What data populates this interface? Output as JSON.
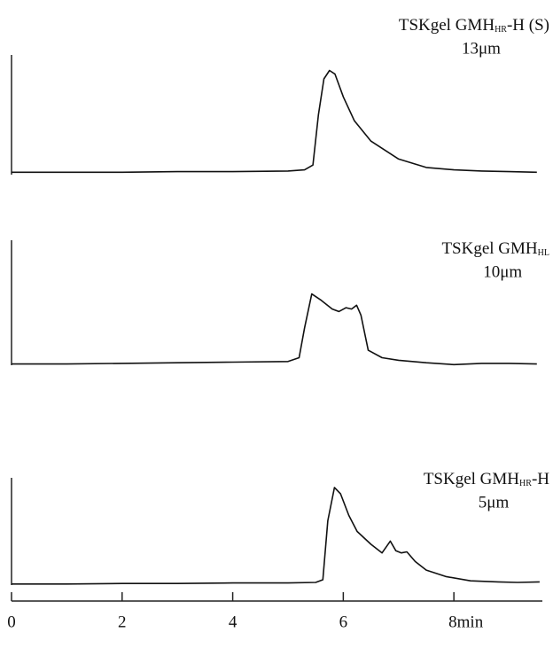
{
  "chart_data": [
    {
      "type": "line",
      "title": "TSKgel GMH",
      "title_subscript": "HR",
      "title_suffix": "-H (S)",
      "subtitle": "13μm",
      "x": [
        0,
        1,
        2,
        3,
        4,
        5,
        5.3,
        5.45,
        5.55,
        5.65,
        5.75,
        5.85,
        6,
        6.2,
        6.5,
        7,
        7.5,
        8,
        8.5,
        9,
        9.5
      ],
      "values": [
        2,
        2,
        2,
        2.5,
        2.5,
        3,
        4,
        8,
        50,
        80,
        87,
        84,
        65,
        45,
        28,
        13,
        6,
        4,
        3,
        2.5,
        2
      ],
      "xlim": [
        0,
        9.6
      ],
      "ylim": [
        0,
        100
      ],
      "color": "#111111"
    },
    {
      "type": "line",
      "title": "TSKgel GMH",
      "title_subscript": "HL",
      "subtitle": "10μm",
      "x": [
        0,
        1,
        2,
        3,
        4,
        5,
        5.2,
        5.3,
        5.43,
        5.6,
        5.8,
        5.92,
        6.05,
        6.15,
        6.24,
        6.32,
        6.45,
        6.7,
        7,
        7.5,
        8,
        8.5,
        9,
        9.5
      ],
      "values": [
        1,
        1,
        1.5,
        2,
        2.5,
        3,
        6,
        30,
        57,
        52,
        45,
        43,
        46,
        45,
        48,
        40,
        12,
        6,
        4,
        2,
        0.5,
        1.5,
        1.5,
        1
      ],
      "xlim": [
        0,
        9.6
      ],
      "ylim": [
        0,
        100
      ],
      "color": "#111111"
    },
    {
      "type": "line",
      "title": "TSKgel GMH",
      "title_subscript": "HR",
      "title_suffix": "-H",
      "subtitle": "5μm",
      "x": [
        0,
        1,
        2,
        3,
        4,
        5,
        5.5,
        5.63,
        5.72,
        5.84,
        5.95,
        6.1,
        6.25,
        6.5,
        6.7,
        6.85,
        6.95,
        7.05,
        7.15,
        7.3,
        7.5,
        7.85,
        8.3,
        8.8,
        9.15,
        9.55
      ],
      "values": [
        1,
        1,
        1.5,
        1.5,
        2,
        2,
        2.5,
        5,
        60,
        91,
        85,
        65,
        50,
        38,
        30,
        41,
        32,
        30,
        31,
        22,
        14,
        8,
        4,
        3,
        2.5,
        3
      ],
      "xlim": [
        0,
        9.6
      ],
      "ylim": [
        0,
        100
      ],
      "color": "#111111",
      "xticks": [
        0,
        2,
        4,
        6,
        {
          "value": 8,
          "label": "8min"
        }
      ]
    }
  ]
}
